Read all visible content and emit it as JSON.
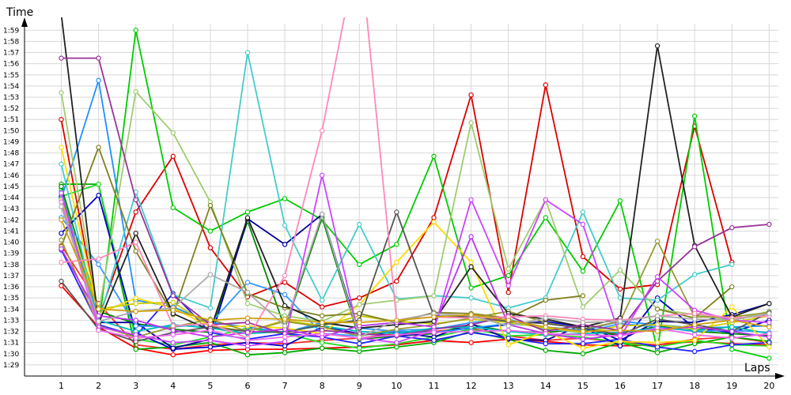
{
  "chart_data": {
    "type": "line",
    "title": "",
    "xlabel": "Laps",
    "ylabel": "Time",
    "x": [
      1,
      2,
      3,
      4,
      5,
      6,
      7,
      8,
      9,
      10,
      11,
      12,
      13,
      14,
      15,
      16,
      17,
      18,
      19,
      20
    ],
    "xticks": [
      "1",
      "2",
      "3",
      "4",
      "5",
      "6",
      "7",
      "8",
      "9",
      "10",
      "11",
      "12",
      "13",
      "14",
      "15",
      "16",
      "17",
      "18",
      "19",
      "20"
    ],
    "yticks": [
      "1:29",
      "1:30",
      "1:31",
      "1:32",
      "1:33",
      "1:34",
      "1:35",
      "1:36",
      "1:37",
      "1:38",
      "1:39",
      "1:40",
      "1:41",
      "1:42",
      "1:43",
      "1:44",
      "1:45",
      "1:46",
      "1:47",
      "1:48",
      "1:49",
      "1:50",
      "1:51",
      "1:52",
      "1:53",
      "1:54",
      "1:55",
      "1:56",
      "1:57",
      "1:58",
      "1:59"
    ],
    "ylim_seconds": [
      88,
      120.5
    ],
    "grid": true,
    "legend": "none",
    "series": [
      {
        "color": "#ff0000",
        "values": [
          96.1,
          92.4,
          90.5,
          89.9,
          90.3,
          90.4,
          90.4,
          90.5,
          90.6,
          90.8,
          91.2,
          91.0,
          91.3,
          91.1,
          90.8,
          90.7,
          90.8,
          91.1,
          90.9,
          90.8
        ]
      },
      {
        "color": "#dd0000",
        "values": [
          111.0,
          93.2,
          102.7,
          107.7,
          99.5,
          95.1,
          96.4,
          94.2,
          95.0,
          96.5,
          102.2,
          113.2,
          95.5,
          114.1,
          98.7,
          95.8,
          96.2,
          110.4,
          98.2,
          null
        ]
      },
      {
        "color": "#ff3030",
        "values": [
          99.7,
          94.5,
          90.8,
          90.4,
          90.8,
          91.0,
          90.9,
          91.2,
          91.4,
          91.8,
          92.0,
          92.3,
          91.6,
          91.2,
          91.4,
          91.0,
          90.8,
          91.3,
          91.5,
          91.0
        ]
      },
      {
        "color": "#00cc00",
        "values": [
          104.8,
          92.3,
          119.0,
          103.1,
          101.0,
          102.7,
          103.9,
          102.0,
          98.0,
          99.8,
          107.7,
          95.9,
          97.0,
          102.2,
          97.4,
          103.7,
          90.4,
          111.3,
          90.4,
          89.6
        ]
      },
      {
        "color": "#00aa00",
        "values": [
          105.2,
          105.2,
          90.4,
          90.6,
          91.0,
          89.9,
          90.1,
          90.5,
          90.2,
          90.6,
          91.0,
          92.0,
          91.3,
          90.3,
          90.0,
          91.0,
          90.1,
          90.9,
          91.5,
          91.1
        ]
      },
      {
        "color": "#22dd22",
        "values": [
          104.1,
          105.2,
          91.3,
          90.8,
          91.5,
          92.3,
          91.8,
          91.0,
          90.5,
          90.9,
          91.5,
          92.2,
          91.6,
          91.7,
          91.5,
          91.0,
          90.6,
          91.2,
          90.8,
          90.7
        ]
      },
      {
        "color": "#008800",
        "values": [
          105.0,
          93.8,
          92.7,
          92.2,
          91.9,
          101.9,
          92.3,
          102.2,
          91.3,
          91.6,
          91.8,
          92.6,
          92.0,
          91.9,
          92.2,
          91.6,
          92.5,
          92.0,
          91.8,
          91.6
        ]
      },
      {
        "color": "#0000cc",
        "values": [
          100.8,
          104.2,
          91.9,
          90.4,
          90.6,
          91.0,
          90.7,
          92.4,
          91.8,
          91.6,
          91.9,
          92.3,
          92.6,
          92.9,
          92.4,
          90.7,
          95.0,
          92.3,
          91.9,
          93.0
        ]
      },
      {
        "color": "#000099",
        "values": [
          104.1,
          92.8,
          92.8,
          90.5,
          91.3,
          102.1,
          99.8,
          102.5,
          91.7,
          91.9,
          91.5,
          92.7,
          91.3,
          91.2,
          92.6,
          91.2,
          92.9,
          92.8,
          93.5,
          94.5
        ]
      },
      {
        "color": "#2222ff",
        "values": [
          99.3,
          92.6,
          91.6,
          95.4,
          91.9,
          91.3,
          91.8,
          91.5,
          90.9,
          91.6,
          91.2,
          91.9,
          91.4,
          90.9,
          90.9,
          91.3,
          90.6,
          90.2,
          90.8,
          91.0
        ]
      },
      {
        "color": "#1e90ff",
        "values": [
          103.9,
          114.5,
          94.8,
          94.2,
          92.8,
          92.4,
          91.9,
          92.8,
          92.3,
          92.0,
          91.9,
          92.3,
          92.7,
          92.4,
          92.1,
          92.9,
          92.6,
          92.3,
          92.4,
          92.5
        ]
      },
      {
        "color": "#3399ff",
        "values": [
          102.2,
          98.0,
          92.5,
          92.4,
          92.7,
          96.4,
          95.3,
          91.8,
          91.6,
          92.1,
          92.2,
          92.8,
          93.1,
          92.2,
          91.9,
          92.7,
          92.4,
          92.0,
          92.1,
          91.9
        ]
      },
      {
        "color": "#44cccc",
        "values": [
          107.0,
          92.8,
          104.5,
          95.3,
          94.1,
          117.0,
          101.5,
          94.8,
          101.6,
          94.9,
          95.2,
          95.0,
          94.1,
          95.0,
          102.7,
          95.0,
          94.8,
          97.1,
          98.0,
          null
        ]
      },
      {
        "color": "#00bbbb",
        "values": [
          104.5,
          93.0,
          92.0,
          92.6,
          92.3,
          91.8,
          92.0,
          92.5,
          92.0,
          91.8,
          92.3,
          92.4,
          92.0,
          91.7,
          91.8,
          91.9,
          92.3,
          92.1,
          92.4,
          91.8
        ]
      },
      {
        "color": "#ffdd00",
        "values": [
          108.5,
          93.6,
          95.0,
          94.1,
          92.4,
          92.5,
          92.3,
          91.8,
          94.4,
          98.2,
          101.8,
          98.2,
          90.8,
          92.0,
          90.5,
          91.1,
          91.0,
          91.2,
          94.2,
          90.6
        ]
      },
      {
        "color": "#cccc00",
        "values": [
          103.8,
          94.0,
          94.5,
          94.6,
          92.5,
          92.0,
          93.0,
          92.5,
          93.4,
          92.9,
          92.7,
          93.1,
          92.8,
          92.3,
          91.9,
          92.5,
          92.6,
          92.2,
          92.8,
          93.4
        ]
      },
      {
        "color": "#a0cc70",
        "values": [
          113.4,
          93.6,
          113.5,
          109.8,
          103.6,
          94.5,
          93.4,
          92.9,
          94.4,
          94.8,
          95.2,
          110.7,
          97.6,
          103.8,
          94.2,
          97.5,
          94.0,
          93.5,
          93.0,
          93.8
        ]
      },
      {
        "color": "#808020",
        "values": [
          99.6,
          108.5,
          99.2,
          93.5,
          103.3,
          95.4,
          94.1,
          93.4,
          93.6,
          92.8,
          93.7,
          93.6,
          93.2,
          94.8,
          95.2,
          null,
          94.0,
          93.2,
          96.0,
          null
        ]
      },
      {
        "color": "#999933",
        "values": [
          100.2,
          92.5,
          91.5,
          92.4,
          93.1,
          92.0,
          92.9,
          92.4,
          91.6,
          92.2,
          92.6,
          93.2,
          93.8,
          92.8,
          92.2,
          92.9,
          100.1,
          93.3,
          93.3,
          93.7
        ]
      },
      {
        "color": "#222222",
        "values": [
          120.4,
          92.7,
          100.8,
          93.6,
          92.1,
          102.2,
          94.3,
          92.8,
          92.3,
          92.6,
          92.9,
          97.8,
          93.6,
          93.1,
          92.4,
          93.2,
          117.6,
          99.7,
          93.3,
          94.5
        ]
      },
      {
        "color": "#555555",
        "values": [
          96.5,
          92.2,
          91.1,
          91.9,
          92.4,
          92.0,
          91.9,
          92.6,
          93.0,
          102.7,
          93.4,
          93.3,
          92.9,
          92.7,
          92.3,
          91.7,
          93.1,
          92.6,
          92.0,
          93.7
        ]
      },
      {
        "color": "#993399",
        "values": [
          116.5,
          116.5,
          103.8,
          95.2,
          92.6,
          92.8,
          91.8,
          92.1,
          91.8,
          91.6,
          92.2,
          92.6,
          93.4,
          92.0,
          92.6,
          92.1,
          96.5,
          99.6,
          101.3,
          101.6
        ]
      },
      {
        "color": "#cc44ff",
        "values": [
          104.4,
          92.4,
          91.7,
          91.0,
          91.2,
          90.7,
          91.1,
          106.0,
          91.4,
          91.0,
          92.1,
          103.8,
          96.1,
          103.8,
          101.6,
          91.5,
          96.9,
          93.9,
          93.0,
          92.8
        ]
      },
      {
        "color": "#bb33ee",
        "values": [
          99.4,
          93.4,
          93.0,
          92.1,
          91.5,
          91.9,
          92.2,
          91.5,
          92.5,
          92.8,
          92.4,
          100.5,
          92.6,
          91.8,
          91.3,
          91.7,
          92.2,
          92.4,
          92.0,
          91.5
        ]
      },
      {
        "color": "#ee66ee",
        "values": [
          103.6,
          92.1,
          91.4,
          91.7,
          92.1,
          91.2,
          91.5,
          91.8,
          91.4,
          91.7,
          91.9,
          92.0,
          92.1,
          91.8,
          91.7,
          91.6,
          92.3,
          91.7,
          91.4,
          91.8
        ]
      },
      {
        "color": "#ff88bb",
        "values": [
          98.2,
          98.5,
          100.0,
          92.5,
          92.7,
          91.4,
          97.0,
          110.0,
          127.0,
          93.0,
          93.3,
          93.2,
          93.3,
          93.4,
          93.1,
          93.0,
          93.4,
          93.6,
          93.2,
          93.4
        ]
      },
      {
        "color": "#aaaaaa",
        "values": [
          103.2,
          92.9,
          93.8,
          94.1,
          97.1,
          95.5,
          92.5,
          102.5,
          91.5,
          93.0,
          93.6,
          93.4,
          92.5,
          93.2,
          92.8,
          92.9,
          93.4,
          93.1,
          93.0,
          93.6
        ]
      },
      {
        "color": "#d0a010",
        "values": [
          102.0,
          94.0,
          93.8,
          93.9,
          93.0,
          93.2,
          93.1,
          92.8,
          92.8,
          93.0,
          93.3,
          93.5,
          93.0,
          92.4,
          92.0,
          92.1,
          92.0,
          92.6,
          93.0,
          92.4
        ]
      }
    ]
  }
}
